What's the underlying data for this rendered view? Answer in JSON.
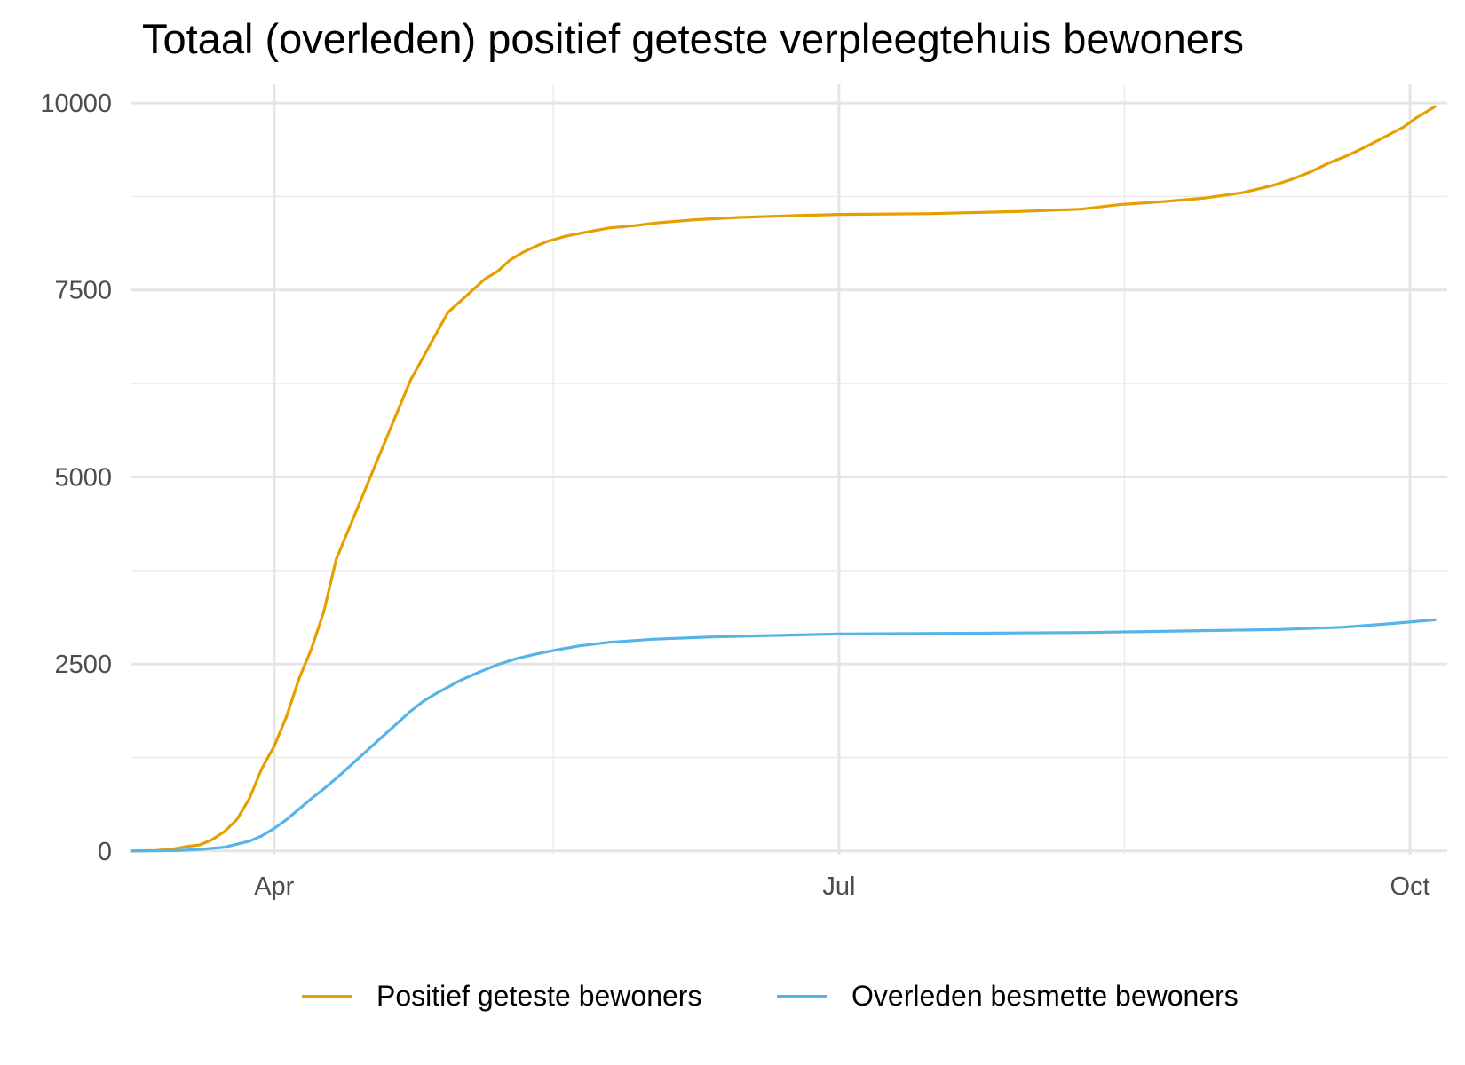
{
  "chart_data": {
    "type": "line",
    "title": "Totaal (overleden) positief geteste verpleegtehuis bewoners",
    "xlabel": "",
    "ylabel": "",
    "x_range": [
      "2020-03-09",
      "2020-10-07"
    ],
    "ylim": [
      -50,
      10250
    ],
    "grid": true,
    "legend_position": "bottom",
    "y_ticks": [
      0,
      2500,
      5000,
      7500,
      10000
    ],
    "y_tick_labels": [
      "0",
      "2500",
      "5000",
      "7500",
      "10000"
    ],
    "x_ticks": [
      "2020-04-01",
      "2020-07-01",
      "2020-10-01"
    ],
    "x_tick_labels": [
      "Apr",
      "Jul",
      "Oct"
    ],
    "x_minor_ticks": [
      "2020-05-16",
      "2020-08-16"
    ],
    "series": [
      {
        "name": "Positief geteste bewoners",
        "color": "#E69F00",
        "points": [
          [
            "2020-03-09",
            0
          ],
          [
            "2020-03-13",
            5
          ],
          [
            "2020-03-16",
            30
          ],
          [
            "2020-03-18",
            60
          ],
          [
            "2020-03-20",
            80
          ],
          [
            "2020-03-22",
            150
          ],
          [
            "2020-03-24",
            260
          ],
          [
            "2020-03-26",
            420
          ],
          [
            "2020-03-28",
            700
          ],
          [
            "2020-03-30",
            1100
          ],
          [
            "2020-04-01",
            1400
          ],
          [
            "2020-04-03",
            1800
          ],
          [
            "2020-04-05",
            2300
          ],
          [
            "2020-04-07",
            2700
          ],
          [
            "2020-04-09",
            3200
          ],
          [
            "2020-04-11",
            3900
          ],
          [
            "2020-04-13",
            4300
          ],
          [
            "2020-04-15",
            4700
          ],
          [
            "2020-04-17",
            5100
          ],
          [
            "2020-04-19",
            5500
          ],
          [
            "2020-04-21",
            5900
          ],
          [
            "2020-04-23",
            6300
          ],
          [
            "2020-04-25",
            6600
          ],
          [
            "2020-04-27",
            6900
          ],
          [
            "2020-04-29",
            7200
          ],
          [
            "2020-05-01",
            7350
          ],
          [
            "2020-05-03",
            7500
          ],
          [
            "2020-05-05",
            7650
          ],
          [
            "2020-05-07",
            7750
          ],
          [
            "2020-05-09",
            7900
          ],
          [
            "2020-05-11",
            8000
          ],
          [
            "2020-05-13",
            8080
          ],
          [
            "2020-05-15",
            8150
          ],
          [
            "2020-05-18",
            8220
          ],
          [
            "2020-05-21",
            8270
          ],
          [
            "2020-05-25",
            8330
          ],
          [
            "2020-05-29",
            8360
          ],
          [
            "2020-06-02",
            8400
          ],
          [
            "2020-06-08",
            8440
          ],
          [
            "2020-06-15",
            8470
          ],
          [
            "2020-06-22",
            8490
          ],
          [
            "2020-07-01",
            8510
          ],
          [
            "2020-07-15",
            8520
          ],
          [
            "2020-07-30",
            8550
          ],
          [
            "2020-08-09",
            8580
          ],
          [
            "2020-08-15",
            8640
          ],
          [
            "2020-08-22",
            8680
          ],
          [
            "2020-08-29",
            8730
          ],
          [
            "2020-09-04",
            8800
          ],
          [
            "2020-09-09",
            8900
          ],
          [
            "2020-09-12",
            8980
          ],
          [
            "2020-09-15",
            9080
          ],
          [
            "2020-09-18",
            9200
          ],
          [
            "2020-09-21",
            9300
          ],
          [
            "2020-09-24",
            9420
          ],
          [
            "2020-09-27",
            9550
          ],
          [
            "2020-09-30",
            9680
          ],
          [
            "2020-10-02",
            9800
          ],
          [
            "2020-10-04",
            9900
          ],
          [
            "2020-10-05",
            9950
          ]
        ]
      },
      {
        "name": "Overleden besmette bewoners",
        "color": "#56B4E9",
        "points": [
          [
            "2020-03-09",
            0
          ],
          [
            "2020-03-16",
            5
          ],
          [
            "2020-03-20",
            20
          ],
          [
            "2020-03-24",
            50
          ],
          [
            "2020-03-28",
            130
          ],
          [
            "2020-03-30",
            200
          ],
          [
            "2020-04-01",
            300
          ],
          [
            "2020-04-03",
            420
          ],
          [
            "2020-04-05",
            560
          ],
          [
            "2020-04-07",
            700
          ],
          [
            "2020-04-09",
            830
          ],
          [
            "2020-04-11",
            970
          ],
          [
            "2020-04-13",
            1120
          ],
          [
            "2020-04-15",
            1270
          ],
          [
            "2020-04-17",
            1420
          ],
          [
            "2020-04-19",
            1570
          ],
          [
            "2020-04-21",
            1720
          ],
          [
            "2020-04-23",
            1870
          ],
          [
            "2020-04-25",
            2000
          ],
          [
            "2020-04-27",
            2100
          ],
          [
            "2020-04-29",
            2190
          ],
          [
            "2020-05-01",
            2280
          ],
          [
            "2020-05-04",
            2390
          ],
          [
            "2020-05-07",
            2490
          ],
          [
            "2020-05-10",
            2570
          ],
          [
            "2020-05-13",
            2630
          ],
          [
            "2020-05-16",
            2680
          ],
          [
            "2020-05-20",
            2740
          ],
          [
            "2020-05-25",
            2790
          ],
          [
            "2020-06-01",
            2830
          ],
          [
            "2020-06-10",
            2860
          ],
          [
            "2020-06-20",
            2880
          ],
          [
            "2020-07-01",
            2900
          ],
          [
            "2020-07-20",
            2910
          ],
          [
            "2020-08-10",
            2920
          ],
          [
            "2020-08-25",
            2940
          ],
          [
            "2020-09-10",
            2960
          ],
          [
            "2020-09-20",
            2990
          ],
          [
            "2020-09-28",
            3040
          ],
          [
            "2020-10-05",
            3090
          ]
        ]
      }
    ]
  }
}
